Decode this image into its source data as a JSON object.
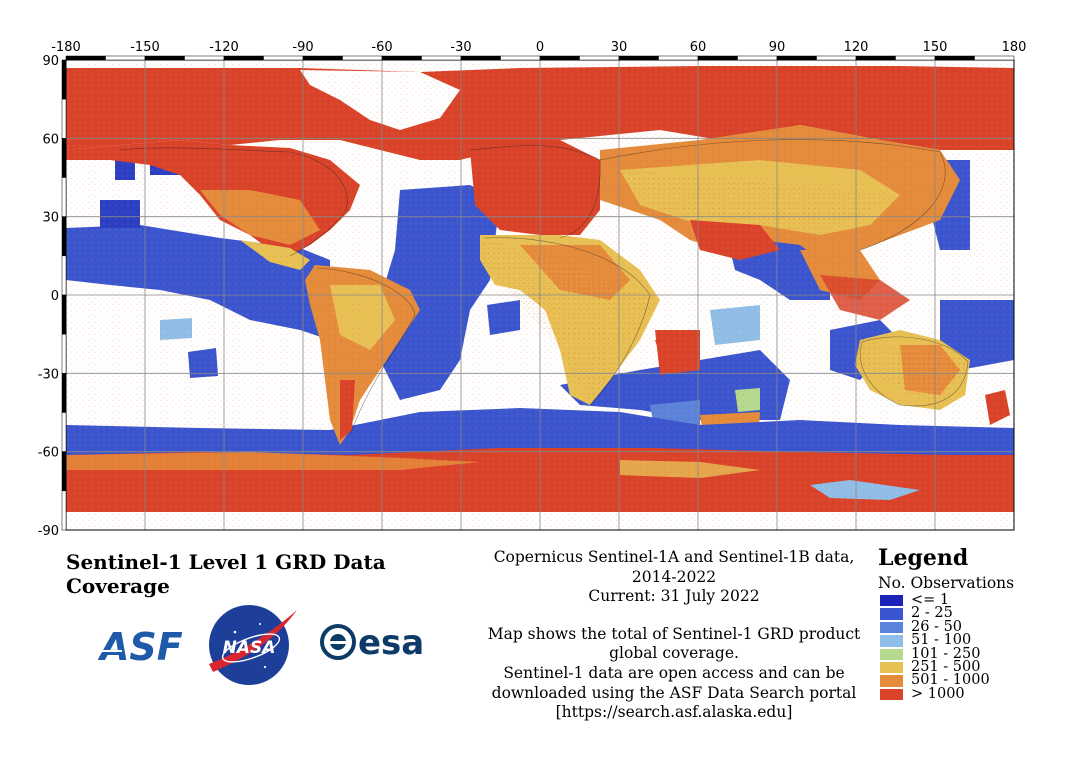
{
  "map": {
    "x_ticks": [
      "-180",
      "-150",
      "-120",
      "-90",
      "-60",
      "-30",
      "0",
      "30",
      "60",
      "90",
      "120",
      "150",
      "180"
    ],
    "y_ticks": [
      "90",
      "60",
      "30",
      "0",
      "-30",
      "-60",
      "-90"
    ]
  },
  "title": "Sentinel-1 Level 1 GRD Data Coverage",
  "description": {
    "line1": "Copernicus Sentinel-1A and Sentinel-1B data,",
    "line2": "2014-2022",
    "line3": "Current: 31 July 2022",
    "line4": "Map shows the total of Sentinel-1 GRD product",
    "line5": "global coverage.",
    "line6": "Sentinel-1 data are open access and can be",
    "line7": "downloaded using the ASF Data Search portal",
    "line8": "[https://search.asf.alaska.edu]"
  },
  "legend": {
    "title": "Legend",
    "subtitle": "No. Observations",
    "items": [
      {
        "label": "<= 1",
        "color": "#1a22b8"
      },
      {
        "label": "2 - 25",
        "color": "#3a55d0"
      },
      {
        "label": "26 - 50",
        "color": "#5a84dc"
      },
      {
        "label": "51 - 100",
        "color": "#8fbfe8"
      },
      {
        "label": "101 - 250",
        "color": "#b5d98f"
      },
      {
        "label": "251 - 500",
        "color": "#e8c155"
      },
      {
        "label": "501 - 1000",
        "color": "#e58c3c"
      },
      {
        "label": "> 1000",
        "color": "#d9432a"
      }
    ]
  },
  "logos": {
    "asf": "ASF",
    "nasa": "NASA",
    "esa": "esa"
  }
}
